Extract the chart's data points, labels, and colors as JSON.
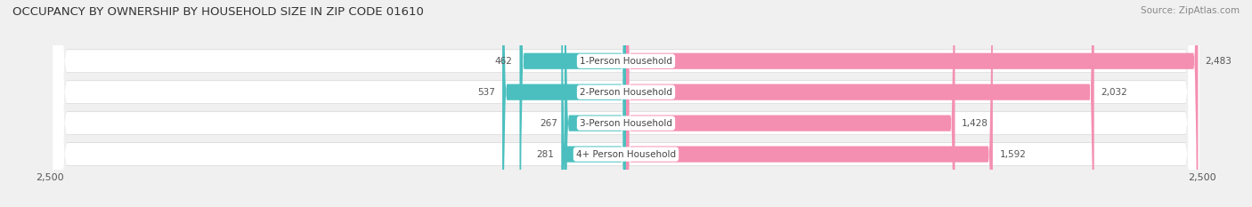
{
  "title": "OCCUPANCY BY OWNERSHIP BY HOUSEHOLD SIZE IN ZIP CODE 01610",
  "source": "Source: ZipAtlas.com",
  "categories": [
    "1-Person Household",
    "2-Person Household",
    "3-Person Household",
    "4+ Person Household"
  ],
  "owner_values": [
    462,
    537,
    267,
    281
  ],
  "renter_values": [
    2483,
    2032,
    1428,
    1592
  ],
  "owner_color": "#4bbfbf",
  "renter_color": "#f48fb1",
  "axis_max": 2500,
  "background_color": "#f0f0f0",
  "row_bg_color": "#ffffff",
  "title_fontsize": 9.5,
  "source_fontsize": 7.5,
  "label_fontsize": 7.5,
  "tick_fontsize": 8
}
